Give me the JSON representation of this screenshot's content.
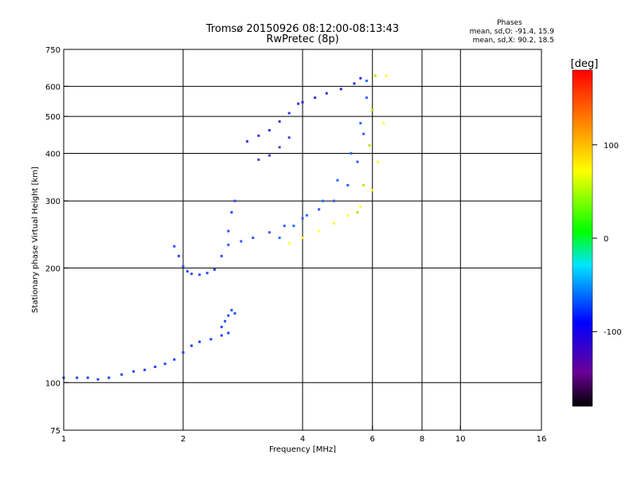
{
  "chart_data": {
    "type": "scatter",
    "title": "Tromsø 20150926 08:12:00-08:13:43",
    "subtitle": "RwPretec (8p)",
    "xlabel": "Frequency [MHz]",
    "ylabel": "Stationary phase Virtual Height [km]",
    "x_scale": "log",
    "y_scale": "log",
    "xlim": [
      1,
      16
    ],
    "ylim": [
      75,
      750
    ],
    "x_ticks": [
      1,
      2,
      4,
      6,
      8,
      10,
      16
    ],
    "y_ticks": [
      75,
      100,
      200,
      300,
      400,
      500,
      600,
      750
    ],
    "grid": true,
    "stats": {
      "heading": "Phases",
      "line_o": "mean, sd,O: -91.4, 15.9",
      "line_x": "mean, sd,X: 90.2, 18.5"
    },
    "colorbar": {
      "label": "[deg]",
      "ticks": [
        100,
        0,
        -100
      ],
      "range": [
        -180,
        180
      ],
      "colors": [
        "#000000",
        "#6a0095",
        "#0000ff",
        "#00e5ff",
        "#00ff00",
        "#ffff00",
        "#ff8000",
        "#ff0000"
      ]
    },
    "traces": [
      {
        "name": "",
        "color": "#1f3fff",
        "x": [
          1.0,
          1.08,
          1.15,
          1.22,
          1.3,
          1.4,
          1.5,
          1.6,
          1.7,
          1.8,
          1.9,
          2.0,
          2.1,
          2.2,
          2.35,
          2.5,
          2.6
        ],
        "y": [
          103,
          103,
          103,
          102,
          103,
          105,
          107,
          108,
          110,
          112,
          115,
          120,
          125,
          128,
          130,
          133,
          135
        ]
      },
      {
        "name": "",
        "color": "#2e4bff",
        "x": [
          1.9,
          1.95,
          2.0,
          2.05,
          2.1,
          2.2,
          2.3,
          2.4,
          2.5,
          2.6,
          2.65,
          2.7
        ],
        "y": [
          228,
          215,
          202,
          196,
          193,
          192,
          194,
          198,
          215,
          250,
          280,
          300
        ]
      },
      {
        "name": "",
        "color": "#3a56ff",
        "x": [
          2.6,
          2.8,
          3.0,
          3.3,
          3.6,
          4.0,
          4.4,
          4.8,
          5.2,
          5.5,
          5.7,
          5.8
        ],
        "y": [
          230,
          235,
          240,
          248,
          258,
          270,
          285,
          300,
          330,
          380,
          450,
          560
        ]
      },
      {
        "name": "",
        "color": "#1e6cff",
        "x": [
          3.5,
          3.8,
          4.1,
          4.5,
          4.9,
          5.3,
          5.6,
          5.8
        ],
        "y": [
          240,
          258,
          275,
          300,
          340,
          400,
          480,
          620
        ]
      },
      {
        "name": "",
        "color": "#2a2adf",
        "x": [
          4.0,
          4.3,
          4.6,
          5.0,
          5.4,
          5.6
        ],
        "y": [
          545,
          560,
          575,
          590,
          610,
          630
        ]
      },
      {
        "name": "",
        "color": "#3939d9",
        "x": [
          2.9,
          3.1,
          3.3,
          3.5,
          3.7,
          3.9
        ],
        "y": [
          430,
          445,
          460,
          485,
          510,
          540
        ]
      },
      {
        "name": "",
        "color": "#4242d0",
        "x": [
          3.1,
          3.3,
          3.5,
          3.7
        ],
        "y": [
          385,
          395,
          415,
          440
        ]
      },
      {
        "name": "",
        "color": "#ffff33",
        "x": [
          3.7,
          4.0,
          4.4,
          4.8,
          5.2,
          5.6,
          6.0,
          6.2,
          6.4,
          6.5
        ],
        "y": [
          232,
          240,
          250,
          262,
          275,
          290,
          320,
          380,
          480,
          640
        ]
      },
      {
        "name": "",
        "color": "#c8dd00",
        "x": [
          5.5,
          5.7,
          5.9,
          6.0,
          6.1
        ],
        "y": [
          280,
          330,
          420,
          520,
          640
        ]
      },
      {
        "name": "",
        "color": "#2050ff",
        "x": [
          2.5,
          2.55,
          2.6,
          2.65,
          2.7
        ],
        "y": [
          140,
          145,
          150,
          155,
          152
        ]
      }
    ]
  }
}
